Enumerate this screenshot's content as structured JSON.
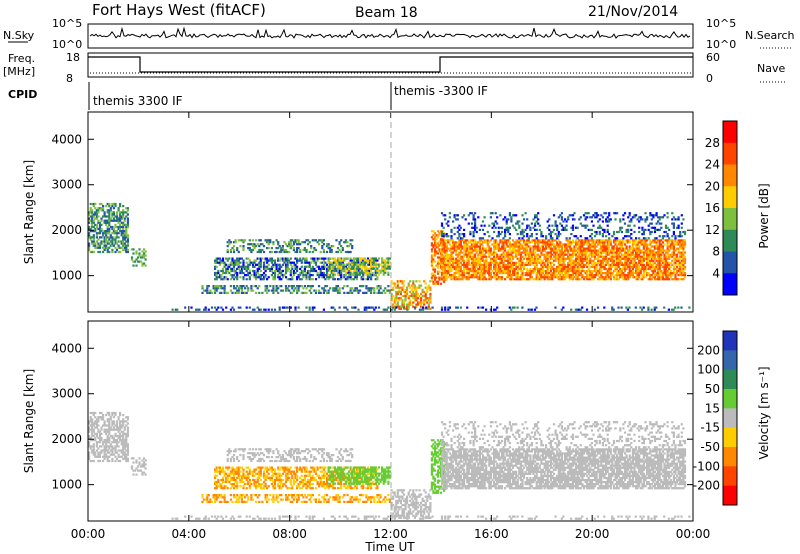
{
  "header": {
    "title": "Fort Hays West (fitACF)",
    "beam": "Beam 18",
    "date": "21/Nov/2014"
  },
  "left_labels": {
    "nsky": "N.Sky",
    "freq": "Freq.",
    "freq_unit": "[MHz]",
    "cpid": "CPID",
    "nsky_top": "10^5",
    "nsky_bottom": "10^0",
    "freq_top": "18",
    "freq_bottom": "8"
  },
  "right_labels": {
    "nsearch": "N.Search",
    "nave": "Nave",
    "nsearch_top": "10^5",
    "nsearch_bottom": "10^0",
    "nave_top": "60",
    "nave_bottom": "0"
  },
  "cpid_segments": [
    {
      "label": "themis 3300 IF"
    },
    {
      "label": "themis -3300 IF"
    }
  ],
  "colors": {
    "power_scale": [
      "#0000ff",
      "#2255aa",
      "#2e8b57",
      "#7fbf3f",
      "#ffcc00",
      "#ff8800",
      "#ff4400",
      "#ff0000"
    ],
    "velocity_scale": [
      "#2233bb",
      "#3366aa",
      "#2e8b57",
      "#66cc33",
      "#bbbbbb",
      "#ffcc00",
      "#ff8800",
      "#ff4400",
      "#ff0000"
    ]
  },
  "chart_data": [
    {
      "type": "heatmap",
      "name": "Power",
      "xlabel": "",
      "ylabel": "Slant Range [km]",
      "ylim": [
        200,
        4600
      ],
      "yticks": [
        "4000",
        "3000",
        "2000",
        "1000"
      ],
      "colorbar": {
        "label": "Power [dB]",
        "ticks": [
          "28",
          "24",
          "20",
          "16",
          "12",
          "8",
          "4"
        ]
      }
    },
    {
      "type": "heatmap",
      "name": "Velocity",
      "xlabel": "Time UT",
      "ylabel": "Slant Range [km]",
      "ylim": [
        200,
        4600
      ],
      "yticks": [
        "4000",
        "3000",
        "2000",
        "1000"
      ],
      "xticks": [
        "00:00",
        "04:00",
        "08:00",
        "12:00",
        "16:00",
        "20:00",
        "00:00"
      ],
      "colorbar": {
        "label": "Velocity [m s⁻¹]",
        "ticks": [
          "200",
          "100",
          "50",
          "15",
          "-15",
          "-50",
          "-100",
          "-200"
        ]
      }
    }
  ]
}
